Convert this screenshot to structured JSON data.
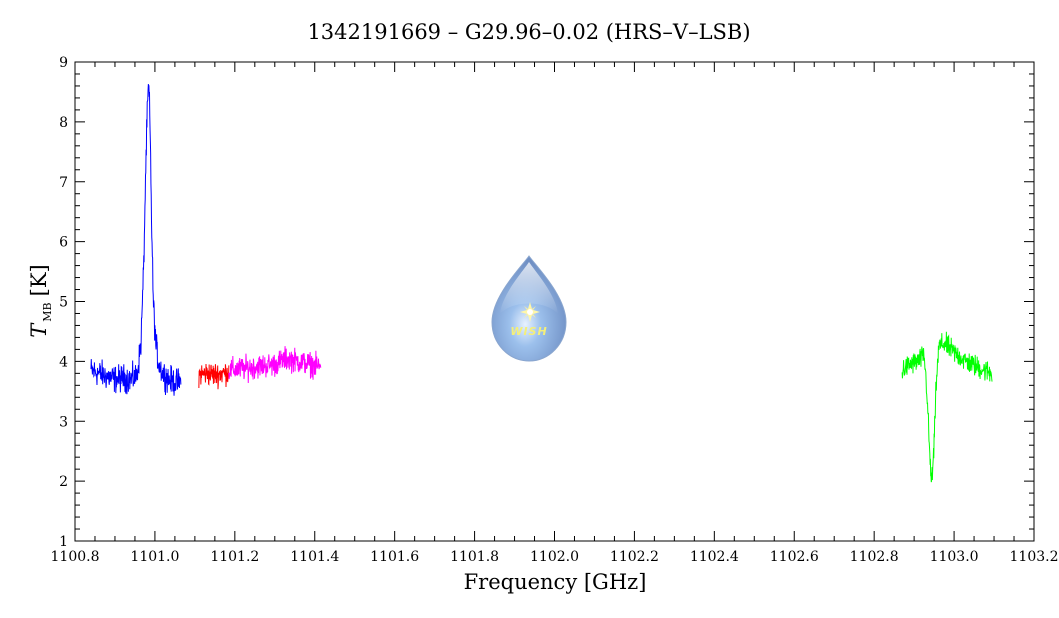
{
  "chart_data": {
    "type": "line",
    "title": "1342191669 – G29.96–0.02 (HRS–V–LSB)",
    "xlabel": "Frequency [GHz]",
    "ylabel": {
      "main": "T",
      "sub": "MB",
      "unit": "[K]"
    },
    "xlim": [
      1100.8,
      1103.2
    ],
    "ylim": [
      1,
      9
    ],
    "xticks": [
      1100.8,
      1101.0,
      1101.2,
      1101.4,
      1101.6,
      1101.8,
      1102.0,
      1102.2,
      1102.4,
      1102.6,
      1102.8,
      1103.0,
      1103.2
    ],
    "xtick_labels": [
      "1100.8",
      "1101.0",
      "1101.2",
      "1101.4",
      "1101.6",
      "1101.8",
      "1102.0",
      "1102.2",
      "1102.4",
      "1102.6",
      "1102.8",
      "1103.0",
      "1103.2"
    ],
    "yticks": [
      1,
      2,
      3,
      4,
      5,
      6,
      7,
      8,
      9
    ],
    "ytick_labels": [
      "1",
      "2",
      "3",
      "4",
      "5",
      "6",
      "7",
      "8",
      "9"
    ],
    "grid": false,
    "series": [
      {
        "color": "#0000ff",
        "x": [
          1100.84,
          1100.86,
          1100.88,
          1100.9,
          1100.92,
          1100.94,
          1100.955,
          1100.965,
          1100.972,
          1100.977,
          1100.981,
          1100.984,
          1100.986,
          1100.989,
          1100.992,
          1100.996,
          1101.002,
          1101.01,
          1101.02,
          1101.035,
          1101.05,
          1101.065
        ],
        "y": [
          3.85,
          3.8,
          3.75,
          3.7,
          3.72,
          3.7,
          3.75,
          4.3,
          5.6,
          7.2,
          8.2,
          8.6,
          8.4,
          7.5,
          6.2,
          5.0,
          4.3,
          3.95,
          3.8,
          3.7,
          3.65,
          3.65
        ],
        "noise": 0.16
      },
      {
        "color": "#ff0000",
        "x": [
          1101.11,
          1101.13,
          1101.15,
          1101.17,
          1101.185
        ],
        "y": [
          3.78,
          3.8,
          3.78,
          3.8,
          3.82
        ],
        "noise": 0.14
      },
      {
        "color": "#ff00ff",
        "x": [
          1101.185,
          1101.22,
          1101.26,
          1101.3,
          1101.33,
          1101.36,
          1101.39,
          1101.415
        ],
        "y": [
          3.85,
          3.88,
          3.92,
          3.95,
          4.05,
          4.0,
          3.95,
          3.9
        ],
        "noise": 0.14
      },
      {
        "color": "#00ff00",
        "x": [
          1102.87,
          1102.89,
          1102.91,
          1102.925,
          1102.932,
          1102.938,
          1102.942,
          1102.946,
          1102.95,
          1102.955,
          1102.962,
          1102.975,
          1103.0,
          1103.03,
          1103.06,
          1103.095
        ],
        "y": [
          3.85,
          3.95,
          4.0,
          4.1,
          3.5,
          2.6,
          2.05,
          2.1,
          2.6,
          3.6,
          4.25,
          4.3,
          4.15,
          4.0,
          3.9,
          3.8
        ],
        "noise": 0.13
      }
    ]
  },
  "logo": {
    "text": "WISH"
  }
}
